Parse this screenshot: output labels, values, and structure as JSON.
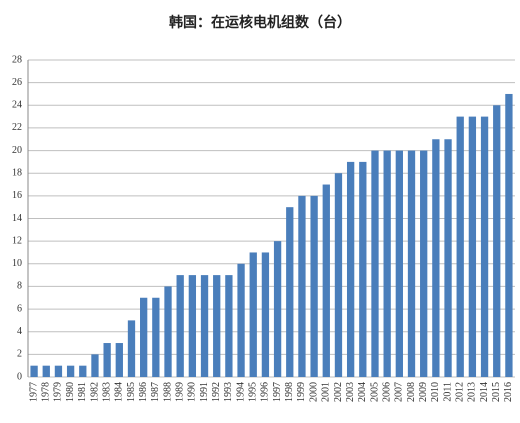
{
  "chart_data": {
    "type": "bar",
    "title": "韩国：在运核电机组数（台）",
    "categories": [
      "1977",
      "1978",
      "1979",
      "1980",
      "1981",
      "1982",
      "1983",
      "1984",
      "1985",
      "1986",
      "1987",
      "1988",
      "1989",
      "1990",
      "1991",
      "1992",
      "1993",
      "1994",
      "1995",
      "1996",
      "1997",
      "1998",
      "1999",
      "2000",
      "2001",
      "2002",
      "2003",
      "2004",
      "2005",
      "2006",
      "2007",
      "2008",
      "2009",
      "2010",
      "2011",
      "2012",
      "2013",
      "2014",
      "2015",
      "2016"
    ],
    "values": [
      1,
      1,
      1,
      1,
      1,
      2,
      3,
      3,
      5,
      7,
      7,
      8,
      9,
      9,
      9,
      9,
      9,
      10,
      11,
      11,
      12,
      15,
      16,
      16,
      17,
      18,
      19,
      19,
      20,
      20,
      20,
      20,
      20,
      21,
      21,
      23,
      23,
      23,
      24,
      25
    ],
    "color": "#4a7ebb",
    "ylim": [
      0,
      28
    ],
    "yticks": [
      0,
      2,
      4,
      6,
      8,
      10,
      12,
      14,
      16,
      18,
      20,
      22,
      24,
      26,
      28
    ],
    "grid": true
  }
}
